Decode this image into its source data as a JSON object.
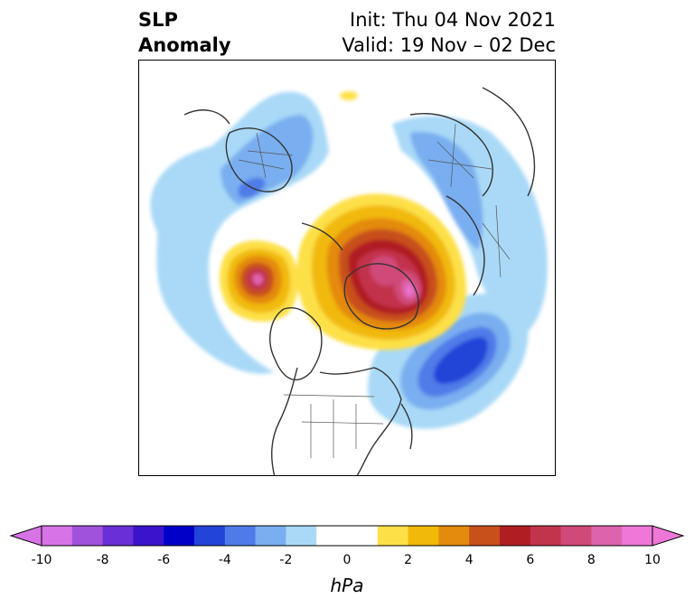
{
  "header": {
    "left_line1": "SLP",
    "left_line2": "Anomaly",
    "right_line1": "Init: Thu 04 Nov 2021",
    "right_line2": "Valid: 19 Nov – 02 Dec"
  },
  "map": {
    "projection": "polar-stereographic",
    "features": {
      "low_north_atlantic": "-5 to -6 hPa",
      "high_alaska_yukon": "+8 hPa",
      "high_arctic_greenland": "+10 hPa"
    }
  },
  "colorbar": {
    "unit": "hPa",
    "tick_labels": [
      "-10",
      "-8",
      "-6",
      "-4",
      "-2",
      "0",
      "2",
      "4",
      "6",
      "8",
      "10"
    ],
    "colors": [
      "#d873e6",
      "#a152dd",
      "#6a2fd6",
      "#3a14cc",
      "#0000c8",
      "#2244d8",
      "#4f7be8",
      "#79aef0",
      "#a9d9f7",
      "#ffffff",
      "#ffffff",
      "#fde047",
      "#f1b90a",
      "#e48a0c",
      "#c8501a",
      "#b01e22",
      "#c2334c",
      "#d04978",
      "#dd64ac",
      "#ee77d8"
    ]
  }
}
